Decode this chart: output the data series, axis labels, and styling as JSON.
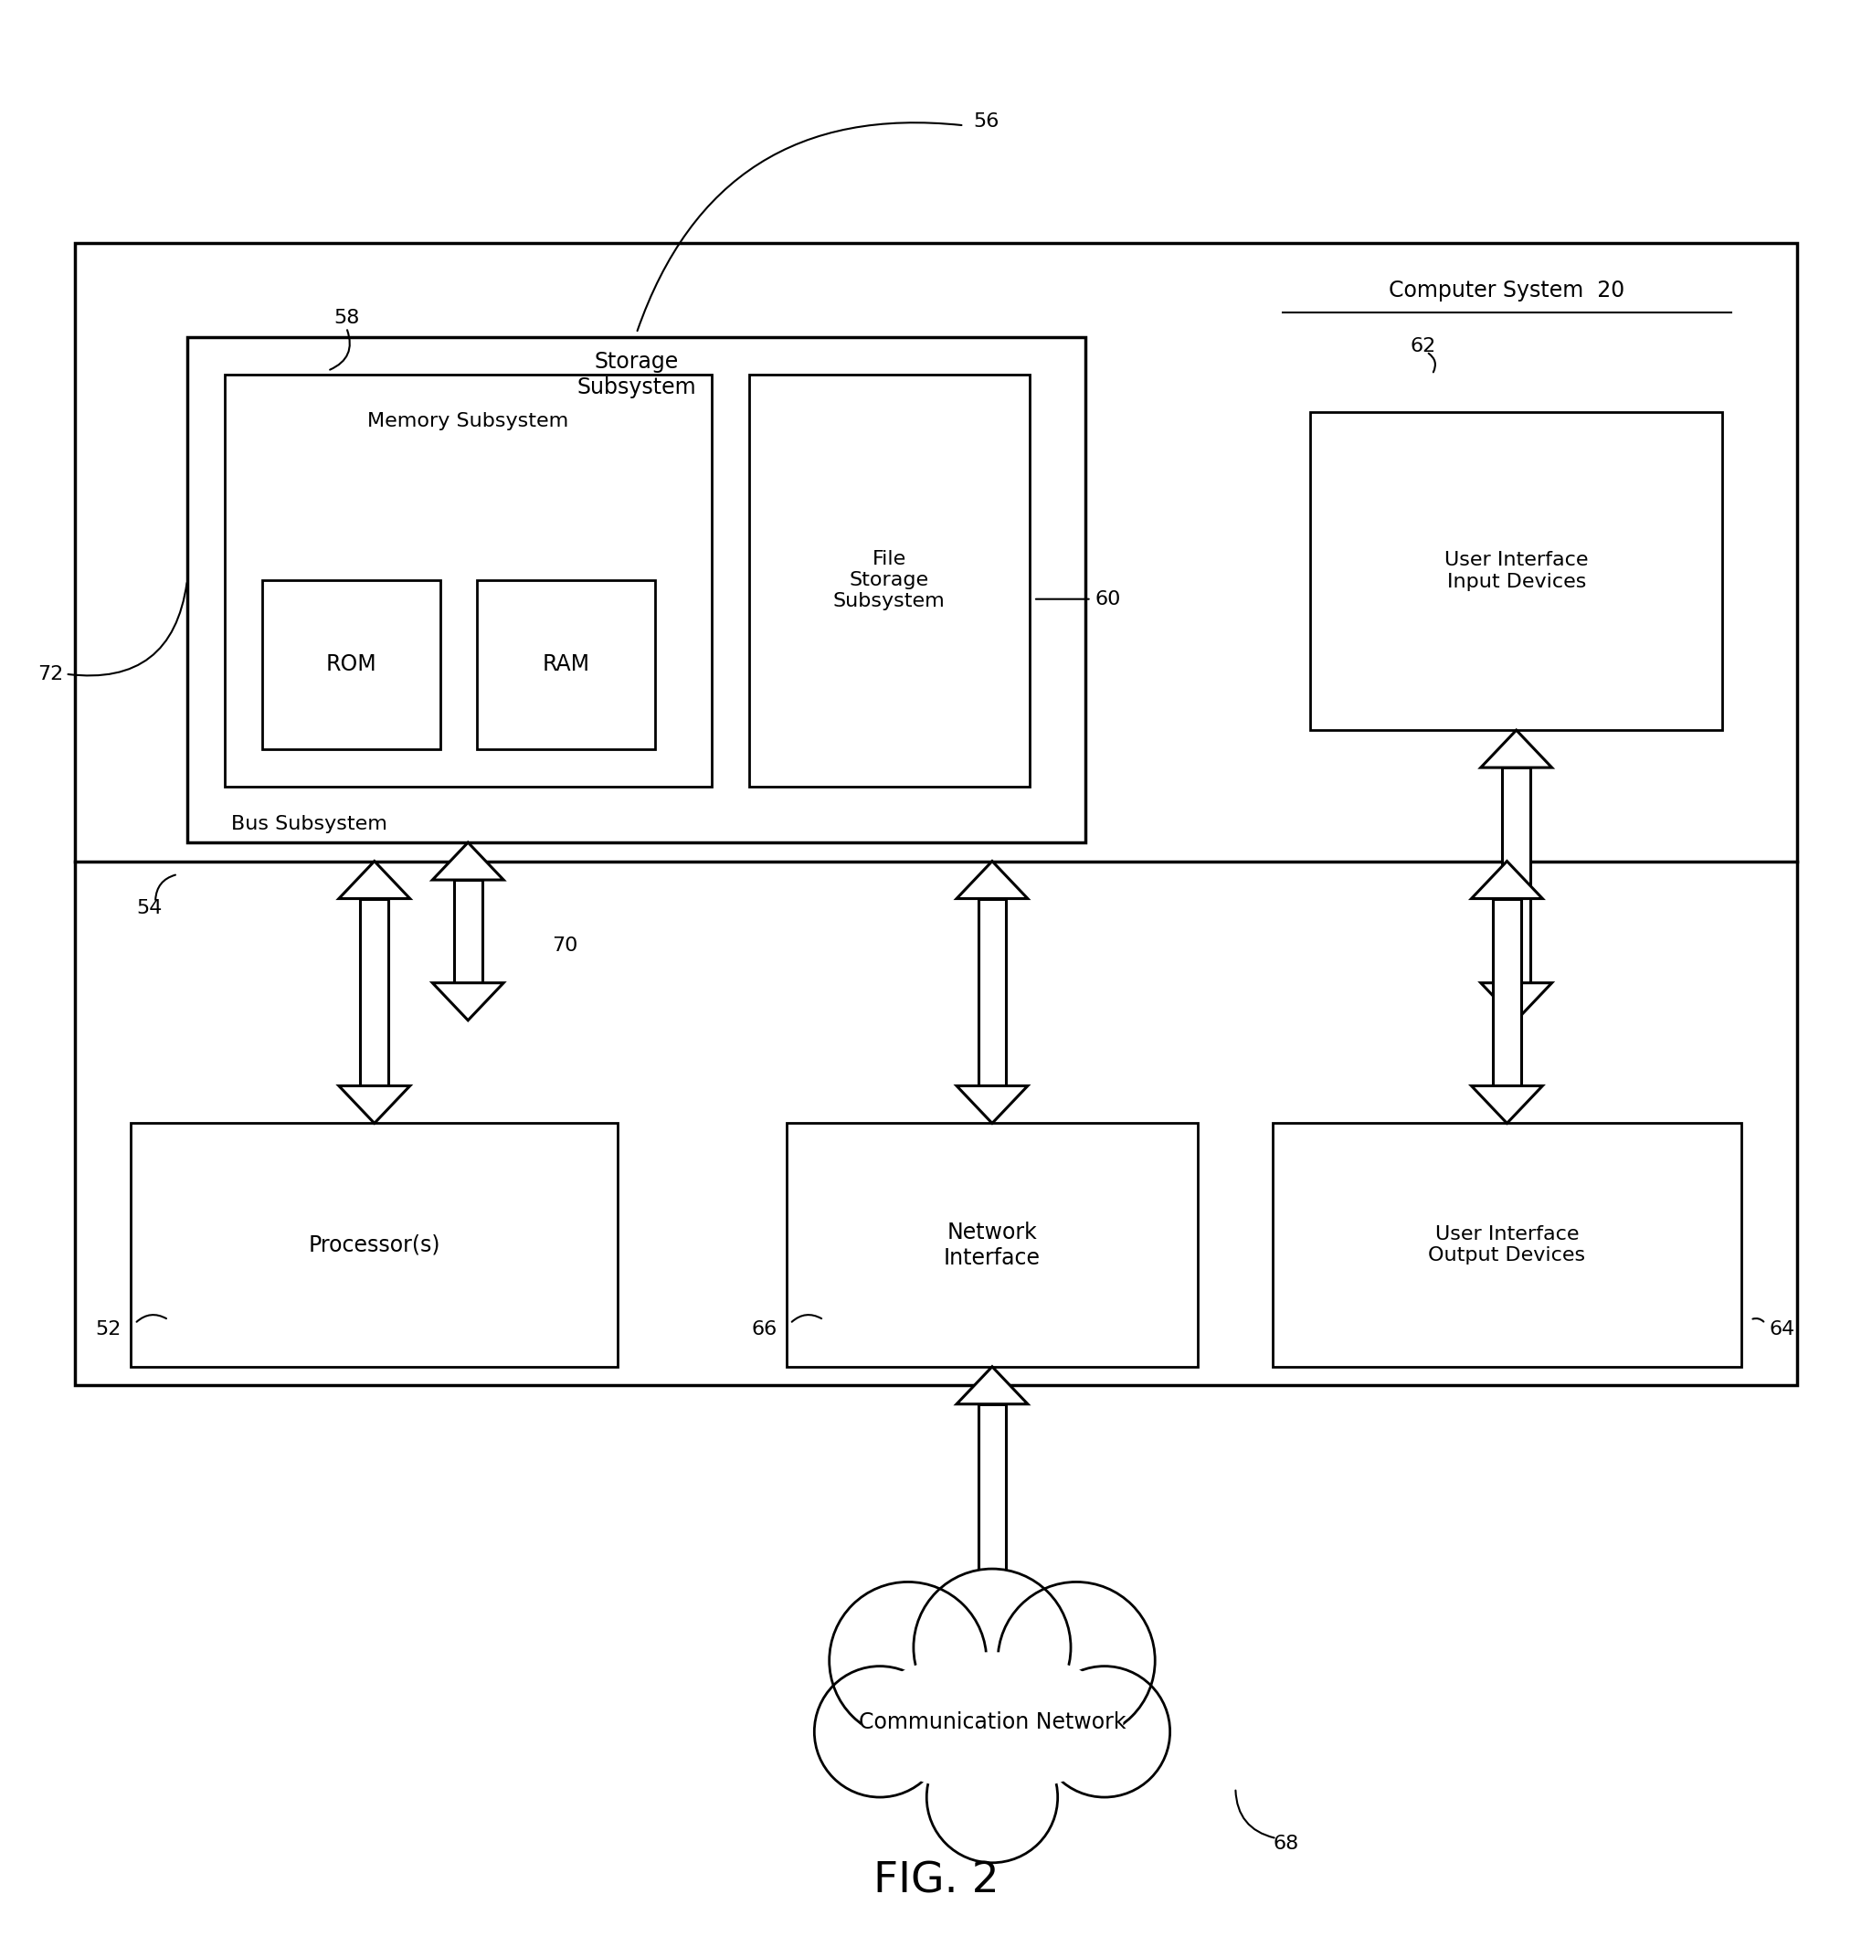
{
  "fig_width": 20.49,
  "fig_height": 21.31,
  "bg_color": "#ffffff",
  "line_color": "#000000",
  "text_color": "#000000",
  "font_family": "DejaVu Sans",
  "title_label": "FIG. 2",
  "title_fontsize": 34,
  "label_fontsize": 17,
  "ref_fontsize": 16,
  "computer_system_label": "Computer System  20",
  "storage_subsystem_label": "Storage\nSubsystem",
  "memory_subsystem_label": "Memory Subsystem",
  "file_storage_label": "File\nStorage\nSubsystem",
  "rom_label": "ROM",
  "ram_label": "RAM",
  "user_interface_input_label": "User Interface\nInput Devices",
  "bus_subsystem_label": "Bus Subsystem",
  "processor_label": "Processor(s)",
  "network_interface_label": "Network\nInterface",
  "user_interface_output_label": "User Interface\nOutput Devices",
  "communication_network_label": "Communication Network",
  "ref_56": "56",
  "ref_58": "58",
  "ref_60": "60",
  "ref_62": "62",
  "ref_64": "64",
  "ref_66": "66",
  "ref_68": "68",
  "ref_70": "70",
  "ref_72": "72",
  "ref_54": "54",
  "ref_52": "52"
}
